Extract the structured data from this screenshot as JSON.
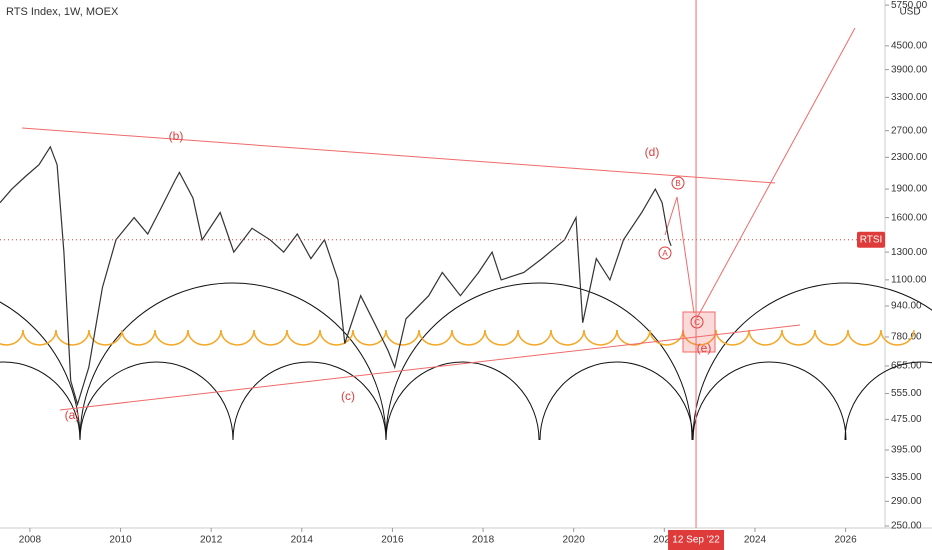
{
  "chart_data": {
    "type": "line",
    "title": "RTS Index, 1W, MOEX",
    "currency": "USD",
    "price_label": "RTSI",
    "last_price": 1400,
    "marker_label": "12 Sep '22",
    "marker_x": 2022.7,
    "log_y": true,
    "annotations": [
      "(a)",
      "(b)",
      "(c)",
      "(d)",
      "(e)",
      "A",
      "B",
      "C"
    ],
    "x": [
      2007.34,
      2007.6,
      2007.9,
      2008.2,
      2008.45,
      2008.6,
      2008.75,
      2008.9,
      2009.05,
      2009.3,
      2009.6,
      2009.9,
      2010.3,
      2010.6,
      2010.9,
      2011.2,
      2011.3,
      2011.6,
      2011.8,
      2012.2,
      2012.5,
      2012.9,
      2013.3,
      2013.6,
      2013.9,
      2014.2,
      2014.5,
      2014.8,
      2014.95,
      2015.3,
      2015.6,
      2015.9,
      2016.05,
      2016.3,
      2016.8,
      2017.1,
      2017.5,
      2017.9,
      2018.2,
      2018.4,
      2018.9,
      2019.3,
      2019.8,
      2020.05,
      2020.2,
      2020.5,
      2020.8,
      2021.1,
      2021.5,
      2021.8,
      2021.95,
      2022.1,
      2022.15
    ],
    "series": [
      {
        "name": "RTSI",
        "color": "#333333",
        "values": [
          1750,
          1900,
          2050,
          2200,
          2450,
          2200,
          1300,
          600,
          520,
          650,
          1050,
          1400,
          1600,
          1450,
          1700,
          2000,
          2100,
          1800,
          1400,
          1650,
          1300,
          1500,
          1400,
          1300,
          1450,
          1250,
          1400,
          1100,
          750,
          1000,
          850,
          720,
          650,
          870,
          1000,
          1150,
          1000,
          1150,
          1300,
          1100,
          1150,
          1250,
          1400,
          1600,
          850,
          1250,
          1100,
          1400,
          1650,
          1900,
          1750,
          1400,
          1350
        ]
      }
    ],
    "xlim": [
      2007.34,
      2026.87
    ],
    "xticks": [
      2008,
      2010,
      2012,
      2014,
      2016,
      2018,
      2020,
      2022,
      2024,
      2026
    ],
    "ylim": [
      247,
      5930
    ],
    "yticks": [
      {
        "value": 250,
        "label": "250.00"
      },
      {
        "value": 290,
        "label": "290.00"
      },
      {
        "value": 335,
        "label": "335.00"
      },
      {
        "value": 395,
        "label": "395.00"
      },
      {
        "value": 475,
        "label": "475.00"
      },
      {
        "value": 555,
        "label": "555.00"
      },
      {
        "value": 655,
        "label": "655.00"
      },
      {
        "value": 780,
        "label": "780.00"
      },
      {
        "value": 940,
        "label": "940.00"
      },
      {
        "value": 1100,
        "label": "1100.00"
      },
      {
        "value": 1300,
        "label": "1300.00"
      },
      {
        "value": 1600,
        "label": "1600.00"
      },
      {
        "value": 1900,
        "label": "1900.00"
      },
      {
        "value": 2300,
        "label": "2300.00"
      },
      {
        "value": 2700,
        "label": "2700.00"
      },
      {
        "value": 3300,
        "label": "3300.00"
      },
      {
        "value": 3900,
        "label": "3900.00"
      },
      {
        "value": 4500,
        "label": "4500.00"
      },
      {
        "value": 5750,
        "label": "5750.00"
      }
    ]
  }
}
